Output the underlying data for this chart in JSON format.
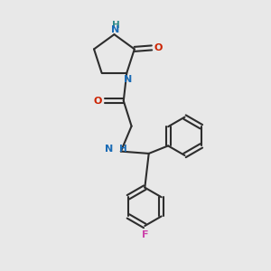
{
  "bg_color": "#e8e8e8",
  "bond_color": "#2d2d2d",
  "N_color": "#1a6bb5",
  "O_color": "#cc2200",
  "F_color": "#cc44aa",
  "H_color": "#2d8a8a",
  "font_size_atom": 8.0,
  "line_width": 1.5,
  "figsize": [
    3.0,
    3.0
  ],
  "dpi": 100,
  "xlim": [
    0,
    10
  ],
  "ylim": [
    0,
    10
  ]
}
